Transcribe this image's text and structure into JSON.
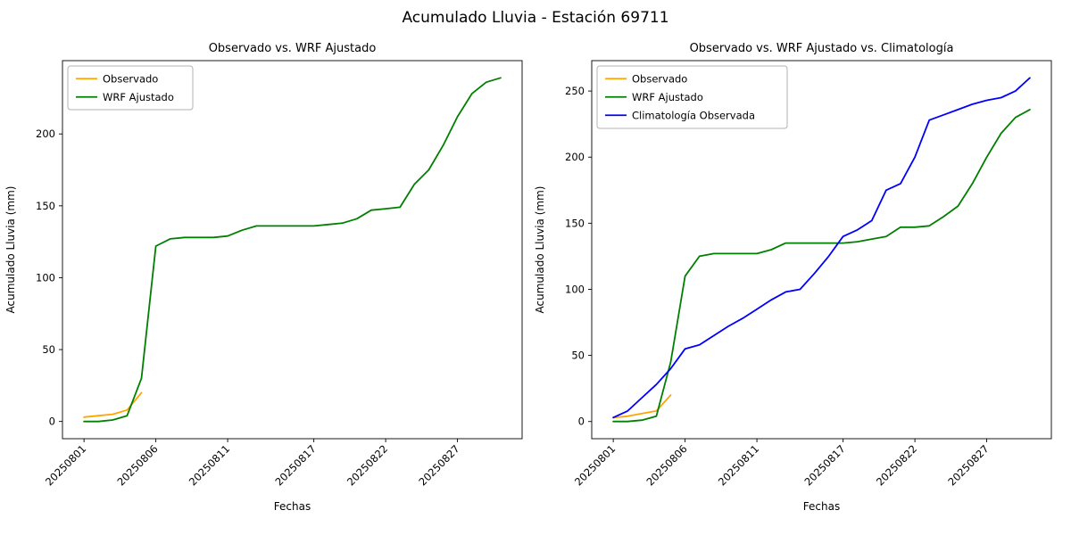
{
  "figure": {
    "title": "Acumulado Lluvia - Estación 69711"
  },
  "chart_data": [
    {
      "type": "line",
      "title": "Observado vs. WRF Ajustado",
      "xlabel": "Fechas",
      "ylabel": "Acumulado Lluvia (mm)",
      "x_tick_labels": [
        "20250801",
        "20250806",
        "20250811",
        "20250817",
        "20250822",
        "20250827"
      ],
      "x_tick_days": [
        1,
        6,
        11,
        17,
        22,
        27
      ],
      "xlim_days": [
        -0.5,
        31.5
      ],
      "ylim": [
        -12,
        251
      ],
      "y_ticks": [
        0,
        50,
        100,
        150,
        200
      ],
      "grid": false,
      "legend_position": "upper-left",
      "series": [
        {
          "name": "Observado",
          "color": "#ffa500",
          "x": [
            1,
            2,
            3,
            4,
            5
          ],
          "values": [
            3,
            4,
            5,
            8,
            20
          ]
        },
        {
          "name": "WRF Ajustado",
          "color": "#008000",
          "x": [
            1,
            2,
            3,
            4,
            5,
            6,
            7,
            8,
            9,
            10,
            11,
            12,
            13,
            14,
            15,
            16,
            17,
            18,
            19,
            20,
            21,
            22,
            23,
            24,
            25,
            26,
            27,
            28,
            29,
            30
          ],
          "values": [
            0,
            0,
            1,
            4,
            30,
            122,
            127,
            128,
            128,
            128,
            129,
            133,
            136,
            136,
            136,
            136,
            136,
            137,
            138,
            141,
            147,
            148,
            149,
            165,
            175,
            192,
            212,
            228,
            236,
            239
          ]
        }
      ]
    },
    {
      "type": "line",
      "title": "Observado vs. WRF Ajustado vs. Climatología",
      "xlabel": "Fechas",
      "ylabel": "Acumulado Lluvia (mm)",
      "x_tick_labels": [
        "20250801",
        "20250806",
        "20250811",
        "20250817",
        "20250822",
        "20250827"
      ],
      "x_tick_days": [
        1,
        6,
        11,
        17,
        22,
        27
      ],
      "xlim_days": [
        -0.5,
        31.5
      ],
      "ylim": [
        -13,
        273
      ],
      "y_ticks": [
        0,
        50,
        100,
        150,
        200,
        250
      ],
      "grid": false,
      "legend_position": "upper-left",
      "series": [
        {
          "name": "Observado",
          "color": "#ffa500",
          "x": [
            1,
            2,
            3,
            4,
            5
          ],
          "values": [
            3,
            4,
            6,
            8,
            20
          ]
        },
        {
          "name": "WRF Ajustado",
          "color": "#008000",
          "x": [
            1,
            2,
            3,
            4,
            5,
            6,
            7,
            8,
            9,
            10,
            11,
            12,
            13,
            14,
            15,
            16,
            17,
            18,
            19,
            20,
            21,
            22,
            23,
            24,
            25,
            26,
            27,
            28,
            29,
            30
          ],
          "values": [
            0,
            0,
            1,
            4,
            45,
            110,
            125,
            127,
            127,
            127,
            127,
            130,
            135,
            135,
            135,
            135,
            135,
            136,
            138,
            140,
            147,
            147,
            148,
            155,
            163,
            180,
            200,
            218,
            230,
            236
          ]
        },
        {
          "name": "Climatología Observada",
          "color": "#0000ff",
          "x": [
            1,
            2,
            3,
            4,
            5,
            6,
            7,
            8,
            9,
            10,
            11,
            12,
            13,
            14,
            15,
            16,
            17,
            18,
            19,
            20,
            21,
            22,
            23,
            24,
            25,
            26,
            27,
            28,
            29,
            30
          ],
          "values": [
            3,
            8,
            18,
            28,
            40,
            55,
            58,
            65,
            72,
            78,
            85,
            92,
            98,
            100,
            112,
            125,
            140,
            145,
            152,
            175,
            180,
            200,
            228,
            232,
            236,
            240,
            243,
            245,
            250,
            260
          ]
        }
      ]
    }
  ]
}
